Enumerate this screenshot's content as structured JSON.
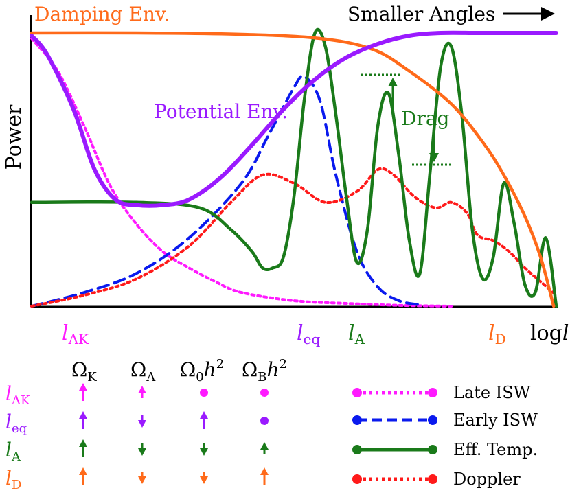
{
  "chart_data": {
    "type": "line",
    "title": "",
    "ylabel": "Power",
    "xlabel": "log l",
    "x_direction_note": "Smaller Angles",
    "xlim": [
      0,
      100
    ],
    "ylim": [
      0,
      100
    ],
    "series": [
      {
        "name": "Damping Env.",
        "color": "#ff6a1a",
        "style": "solid",
        "x": [
          0,
          20,
          40,
          55,
          65,
          72,
          80,
          86,
          90,
          94,
          97,
          99.5
        ],
        "y": [
          100,
          100,
          99.5,
          98,
          94,
          86,
          74,
          60,
          48,
          33,
          18,
          0
        ]
      },
      {
        "name": "Potential Env.",
        "color": "#9a1aff",
        "style": "solid",
        "x": [
          0,
          3,
          8,
          12,
          16,
          20,
          25,
          30,
          36,
          42,
          48,
          54,
          60,
          66,
          72,
          78,
          85,
          92,
          100
        ],
        "y": [
          99,
          92,
          72,
          50,
          39,
          37,
          37,
          39,
          47,
          59,
          72,
          83,
          91,
          96,
          99,
          100,
          100,
          100,
          100
        ]
      },
      {
        "name": "Late ISW",
        "color": "#ff1aff",
        "style": "dotted",
        "x": [
          0,
          5,
          10,
          15,
          20,
          25,
          30,
          35,
          40,
          50,
          60,
          70,
          80
        ],
        "y": [
          98,
          86,
          66,
          44,
          30,
          20,
          14,
          9,
          5,
          2,
          1,
          0.3,
          0
        ]
      },
      {
        "name": "Early ISW",
        "color": "#0a1aee",
        "style": "dashed",
        "x": [
          0,
          10,
          20,
          30,
          40,
          45,
          50,
          52,
          55,
          58,
          62,
          66,
          70,
          74
        ],
        "y": [
          0,
          5,
          12,
          25,
          45,
          62,
          80,
          84,
          75,
          48,
          20,
          7,
          2,
          0.5
        ]
      },
      {
        "name": "Doppler",
        "color": "#ff1a1a",
        "style": "dotted",
        "x": [
          0,
          10,
          20,
          30,
          38,
          44,
          50,
          56,
          62,
          66,
          69,
          73,
          77,
          80,
          83,
          85,
          88,
          91,
          94,
          97,
          100
        ],
        "y": [
          0,
          4,
          10,
          22,
          38,
          48,
          45,
          38,
          42,
          50,
          48,
          40,
          36,
          38,
          34,
          26,
          24,
          20,
          14,
          9,
          4
        ]
      },
      {
        "name": "Eff. Temp.",
        "color": "#1a7a1a",
        "style": "solid",
        "x": [
          0,
          20,
          32,
          38,
          42,
          44,
          46,
          48,
          50,
          52,
          54,
          56,
          58,
          60,
          62,
          64,
          66,
          68,
          70,
          72,
          74,
          76,
          78,
          80,
          82,
          84,
          86,
          88,
          90,
          92,
          94,
          96,
          98,
          100
        ],
        "y": [
          38,
          38,
          36,
          28,
          20,
          14,
          14,
          18,
          40,
          76,
          100,
          95,
          70,
          40,
          16,
          28,
          66,
          78,
          55,
          24,
          12,
          50,
          88,
          95,
          70,
          28,
          10,
          18,
          45,
          30,
          8,
          5,
          25,
          0
        ]
      }
    ],
    "annotations": [
      {
        "text": "Damping Env.",
        "color": "#ff6a1a"
      },
      {
        "text": "Potential Env.",
        "color": "#9a1aff"
      },
      {
        "text": "Drag",
        "color": "#1a7a1a"
      },
      {
        "text": "Smaller Angles",
        "color": "#000000"
      }
    ],
    "x_markers": [
      {
        "base": "l",
        "sub": "ΛK",
        "color": "#ff1aff"
      },
      {
        "base": "l",
        "sub": "eq",
        "color": "#9a1aff"
      },
      {
        "base": "l",
        "sub": "A",
        "color": "#1a7a1a"
      },
      {
        "base": "l",
        "sub": "D",
        "color": "#ff6a1a"
      }
    ],
    "axis_end_label": {
      "base": "log",
      "var": "l"
    }
  },
  "table": {
    "columns": [
      {
        "base": "Ω",
        "sub": "K",
        "sup": ""
      },
      {
        "base": "Ω",
        "sub": "Λ",
        "sup": ""
      },
      {
        "base": "Ω",
        "sub": "0",
        "tail": "h",
        "sup": "2"
      },
      {
        "base": "Ω",
        "sub": "B",
        "tail": "h",
        "sup": "2"
      }
    ],
    "rows": [
      {
        "label_base": "l",
        "label_sub": "ΛK",
        "color": "#ff1aff",
        "cells": [
          "up-arrow",
          "up-arrow-small",
          "dot",
          "dot"
        ]
      },
      {
        "label_base": "l",
        "label_sub": "eq",
        "color": "#9a1aff",
        "cells": [
          "up-arrow",
          "down-arrow-small",
          "up-arrow",
          "dot"
        ]
      },
      {
        "label_base": "l",
        "label_sub": "A",
        "color": "#1a7a1a",
        "cells": [
          "up-arrow",
          "down-arrow-small",
          "down-arrow-small",
          "up-arrow-small"
        ]
      },
      {
        "label_base": "l",
        "label_sub": "D",
        "color": "#ff6a1a",
        "cells": [
          "up-arrow",
          "down-arrow-small",
          "down-arrow-small",
          "up-arrow"
        ]
      }
    ]
  },
  "legend": [
    {
      "label": "Late ISW",
      "color": "#ff1aff",
      "style": "dotted"
    },
    {
      "label": "Early ISW",
      "color": "#0a1aee",
      "style": "dashed"
    },
    {
      "label": "Eff. Temp.",
      "color": "#1a7a1a",
      "style": "solid"
    },
    {
      "label": "Doppler",
      "color": "#ff1a1a",
      "style": "dotted"
    }
  ]
}
